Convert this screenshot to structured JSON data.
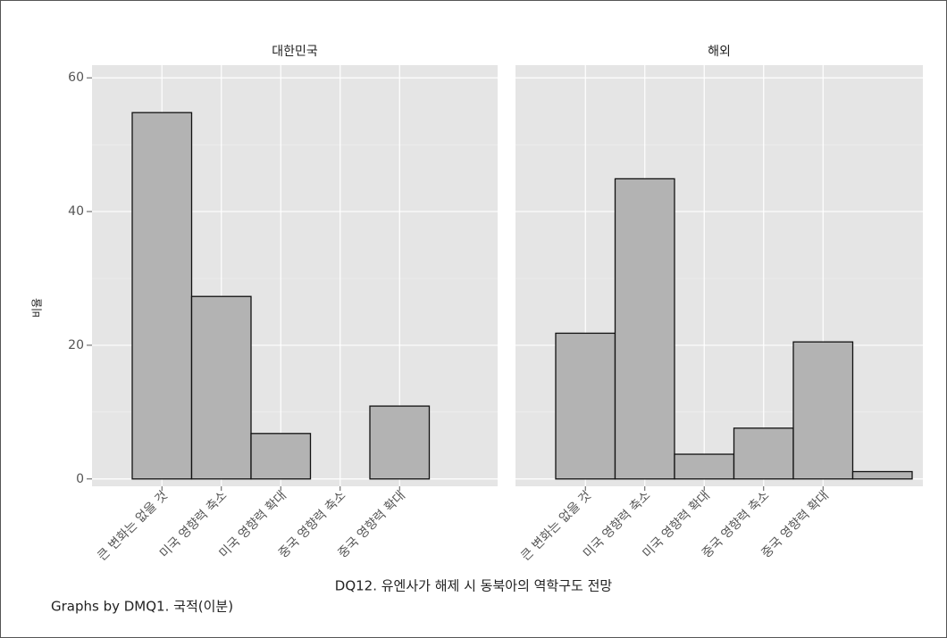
{
  "chart_data": {
    "type": "bar",
    "x_label": "DQ12. 유엔사가 해제 시 동북아의 역학구도 전망",
    "y_label": "비율",
    "note": "Graphs by DMQ1. 국적(이분)",
    "categories": [
      "큰 변화는 없을 것",
      "미국 영향력 축소",
      "미국 영향력 확대",
      "중국 영향력 축소",
      "중국 영향력 확대",
      null
    ],
    "ylim": [
      -1.1,
      61.9
    ],
    "yticks": [
      0,
      20,
      40,
      60
    ],
    "yminorticks": [
      10,
      30,
      50
    ],
    "grid": true,
    "color": "#b3b3b3",
    "panels": [
      {
        "title": "대한민국",
        "values": [
          54.8,
          27.3,
          6.8,
          0,
          10.9,
          null
        ]
      },
      {
        "title": "해외",
        "values": [
          21.8,
          44.9,
          3.7,
          7.6,
          20.5,
          1.1
        ]
      }
    ]
  }
}
